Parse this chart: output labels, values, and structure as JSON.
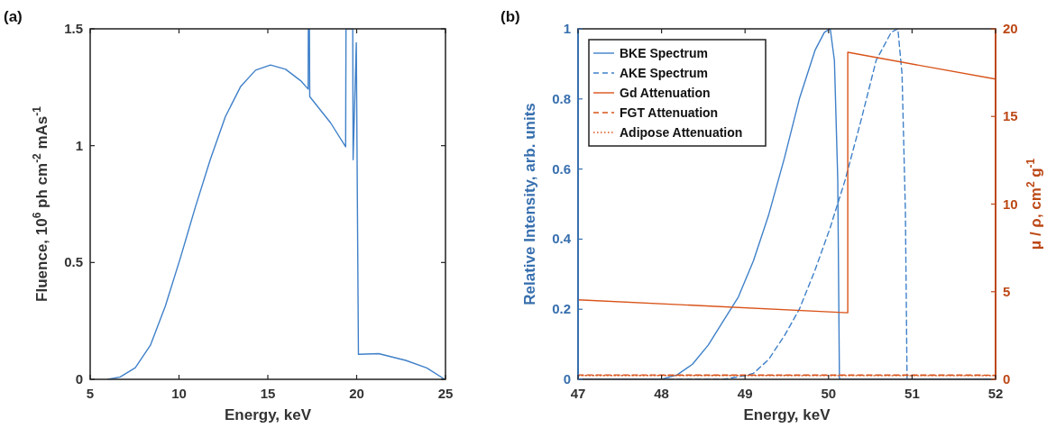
{
  "chart_data": [
    {
      "type": "line",
      "title": "(a)",
      "xlabel": "Energy,  keV",
      "ylabel": "Fluence, 10$^{6}$ ph cm$^{-2}$ mAs$^{-1}$",
      "xlim": [
        5,
        25
      ],
      "ylim": [
        0,
        1.5
      ],
      "xticks": [
        5,
        10,
        15,
        20,
        25
      ],
      "yticks": [
        0,
        0.5,
        1,
        1.5
      ],
      "legend": false,
      "series": [
        {
          "color": "#3f80c9",
          "line_style": "solid",
          "x": [
            6,
            6.69,
            7.54,
            8.39,
            9.23,
            10.08,
            10.92,
            11.77,
            12.61,
            13.46,
            14.31,
            15.15,
            16.0,
            16.85,
            17.27,
            17.28,
            17.34,
            17.36,
            18.53,
            19.38,
            19.4,
            19.78,
            19.8,
            19.98,
            20.1,
            21.24,
            22.77,
            23.95,
            24.96
          ],
          "values": [
            0,
            0.01,
            0.05,
            0.146,
            0.313,
            0.52,
            0.737,
            0.943,
            1.124,
            1.252,
            1.323,
            1.345,
            1.327,
            1.278,
            1.242,
            1.5,
            1.5,
            1.21,
            1.098,
            0.995,
            1.5,
            1.5,
            0.94,
            1.44,
            0.107,
            0.11,
            0.081,
            0.049,
            0
          ]
        }
      ]
    },
    {
      "type": "line",
      "title": "(b)",
      "xlabel": "Energy,  keV",
      "ylabel": "Relative Intensity,  arb. units",
      "y2label": "μ / ρ,  cm$^{2}$ g$^{-1}$",
      "xlim": [
        47,
        52
      ],
      "ylim": [
        0,
        1
      ],
      "y2lim": [
        0,
        20
      ],
      "xticks": [
        47,
        48,
        49,
        50,
        51,
        52
      ],
      "yticks": [
        0,
        0.2,
        0.4,
        0.6,
        0.8,
        1
      ],
      "y2ticks": [
        0,
        5,
        10,
        15,
        20
      ],
      "legend": "top left",
      "series": [
        {
          "name": "BKE Spectrum",
          "color": "#3f80c9",
          "line_style": "solid",
          "axis": "y",
          "x": [
            47,
            48.0,
            48.19,
            48.37,
            48.56,
            48.74,
            48.92,
            49.1,
            49.28,
            49.47,
            49.65,
            49.84,
            49.95,
            50.02,
            50.07,
            50.11,
            50.13,
            52
          ],
          "values": [
            0,
            0,
            0.013,
            0.043,
            0.098,
            0.167,
            0.235,
            0.338,
            0.467,
            0.63,
            0.8,
            0.94,
            0.99,
            1.0,
            0.91,
            0.57,
            0,
            0
          ]
        },
        {
          "name": "AKE Spectrum",
          "color": "#3f80c9",
          "line_style": "dashed",
          "axis": "y",
          "x": [
            47,
            48.74,
            48.99,
            49.1,
            49.28,
            49.47,
            49.65,
            49.84,
            50.02,
            50.2,
            50.39,
            50.57,
            50.75,
            50.83,
            50.88,
            50.92,
            50.94,
            52
          ],
          "values": [
            0,
            0,
            0.01,
            0.017,
            0.056,
            0.124,
            0.2,
            0.313,
            0.433,
            0.57,
            0.74,
            0.91,
            0.99,
            1.0,
            0.87,
            0.48,
            0,
            0
          ]
        },
        {
          "name": "Gd Attenuation",
          "color": "#d95319",
          "line_style": "solid",
          "axis": "y2",
          "x": [
            47,
            50.23,
            50.23,
            52
          ],
          "values": [
            4.54,
            3.8,
            18.66,
            17.13
          ]
        },
        {
          "name": "FGT Attenuation",
          "color": "#d95319",
          "line_style": "dashed",
          "axis": "y2",
          "x": [
            47,
            52
          ],
          "values": [
            0.25,
            0.24
          ]
        },
        {
          "name": "Adipose Attenuation",
          "color": "#d95319",
          "line_style": "dotted",
          "axis": "y2",
          "x": [
            47,
            52
          ],
          "values": [
            0.22,
            0.21
          ]
        }
      ]
    }
  ]
}
